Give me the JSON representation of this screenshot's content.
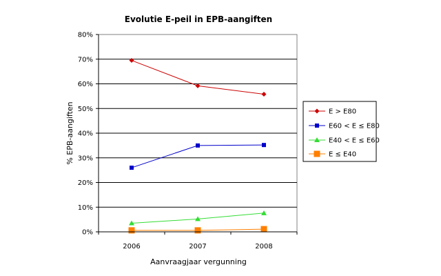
{
  "chart_data": {
    "type": "line",
    "title": "Evolutie E-peil in EPB-aangiften",
    "xlabel": "Aanvraagjaar vergunning",
    "ylabel": "% EPB-aangiften",
    "categories": [
      "2006",
      "2007",
      "2008"
    ],
    "ylim": [
      0,
      80
    ],
    "yticks": [
      0,
      10,
      20,
      30,
      40,
      50,
      60,
      70,
      80
    ],
    "ytick_labels": [
      "0%",
      "10%",
      "20%",
      "30%",
      "40%",
      "50%",
      "60%",
      "70%",
      "80%"
    ],
    "grid": "horizontal",
    "legend_position": "right",
    "series": [
      {
        "name": "E > E80",
        "values": [
          69.5,
          59.2,
          55.8
        ],
        "color": "#cc0000",
        "marker": "diamond"
      },
      {
        "name": "E60 < E ≤ E80",
        "values": [
          26.0,
          35.0,
          35.2
        ],
        "color": "#0000cc",
        "marker": "square"
      },
      {
        "name": "E40 < E ≤ E60",
        "values": [
          3.5,
          5.2,
          7.6
        ],
        "color": "#33dd33",
        "marker": "triangle"
      },
      {
        "name": "E ≤ E40",
        "values": [
          0.6,
          0.6,
          1.1
        ],
        "color": "#ff7f00",
        "marker": "square-large"
      }
    ]
  }
}
